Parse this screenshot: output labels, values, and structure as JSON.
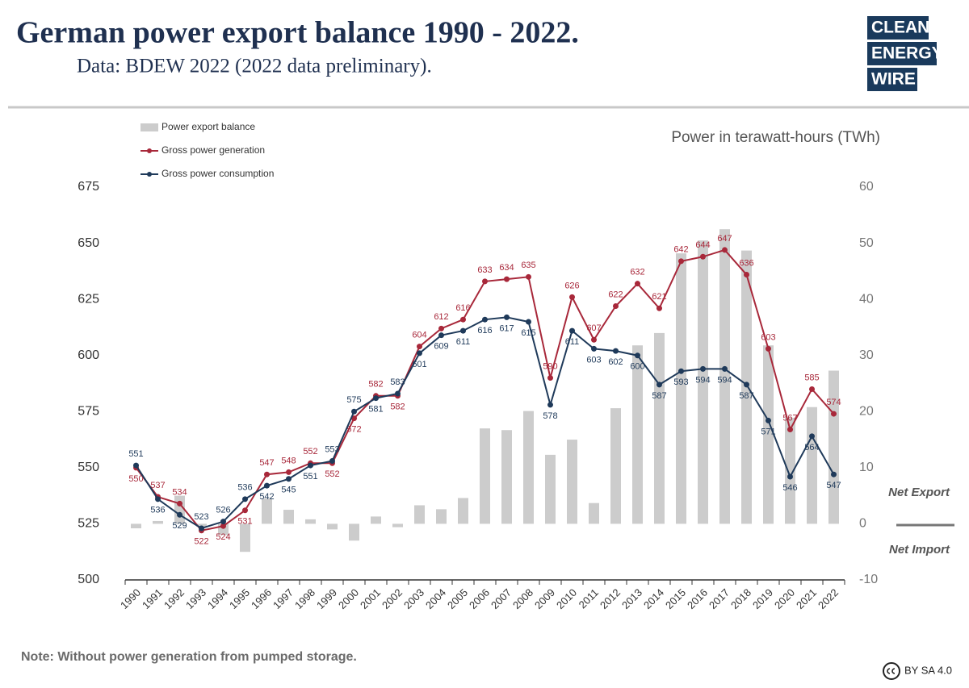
{
  "header": {
    "title": "German power export balance 1990 - 2022.",
    "subtitle": "Data: BDEW 2022 (2022 data preliminary).",
    "logo": [
      "CLEAN",
      "ENERGY",
      "WIRE"
    ]
  },
  "chart_data": {
    "type": "combo",
    "y_label": "Power in terawatt-hours (TWh)",
    "categories": [
      "1990",
      "1991",
      "1992",
      "1993",
      "1994",
      "1995",
      "1996",
      "1997",
      "1998",
      "1999",
      "2000",
      "2001",
      "2002",
      "2003",
      "2004",
      "2005",
      "2006",
      "2007",
      "2008",
      "2009",
      "2010",
      "2011",
      "2012",
      "2013",
      "2014",
      "2015",
      "2016",
      "2017",
      "2018",
      "2019",
      "2020",
      "2021",
      "2022"
    ],
    "series": [
      {
        "name": "Power export balance",
        "type": "bar",
        "axis": "y2",
        "color": "#cccccc",
        "values": [
          -0.8,
          0.5,
          5,
          -0.5,
          -2,
          -5,
          4.5,
          2.5,
          0.8,
          -1,
          -3,
          1.3,
          -0.6,
          3.3,
          2.6,
          4.6,
          17,
          16.7,
          20.1,
          12.3,
          15,
          3.7,
          20.6,
          31.8,
          34,
          48.2,
          50.5,
          52.5,
          48.7,
          31.8,
          18.9,
          20.8,
          27.3
        ]
      },
      {
        "name": "Gross power generation",
        "type": "line",
        "color": "#a8283a",
        "values": [
          550,
          537,
          534,
          522,
          524,
          531,
          547,
          548,
          552,
          552,
          572,
          582,
          582,
          604,
          612,
          616,
          633,
          634,
          635,
          590,
          626,
          607,
          622,
          632,
          621,
          642,
          644,
          647,
          636,
          603,
          567,
          585,
          574
        ]
      },
      {
        "name": "Gross power consumption",
        "type": "line",
        "color": "#1f3a5a",
        "values": [
          551,
          536,
          529,
          523,
          526,
          536,
          542,
          545,
          551,
          553,
          575,
          581,
          583,
          601,
          609,
          611,
          616,
          617,
          615,
          578,
          611,
          603,
          602,
          600,
          587,
          593,
          594,
          594,
          587,
          571,
          546,
          564,
          547
        ]
      }
    ],
    "ylim": [
      500,
      675
    ],
    "yticks": [
      500,
      525,
      550,
      575,
      600,
      625,
      650,
      675
    ],
    "y2lim": [
      -10,
      60
    ],
    "y2ticks": [
      -10,
      0,
      10,
      20,
      30,
      40,
      50,
      60
    ],
    "grid": false,
    "annotations": [
      "Net Export",
      "Net Import"
    ]
  },
  "footer": {
    "note": "Note: Without power generation from pumped storage.",
    "license": "BY SA 4.0"
  }
}
